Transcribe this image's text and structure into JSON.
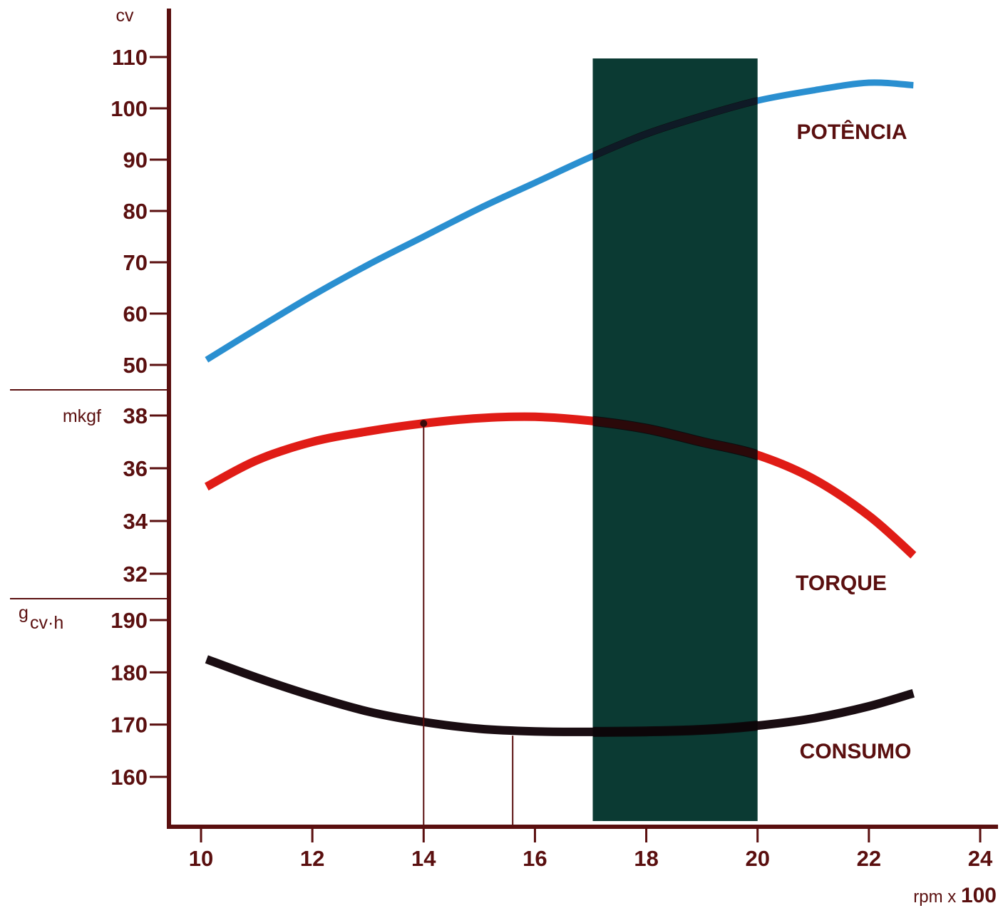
{
  "chart_data": {
    "type": "line",
    "x": {
      "label_prefix": "rpm x",
      "label_suffix": "100",
      "ticks": [
        10,
        12,
        14,
        16,
        18,
        20,
        22,
        24
      ],
      "range": [
        9.3,
        24.2
      ]
    },
    "panels": [
      {
        "id": "potencia",
        "unit": "cv",
        "ticks": [
          50,
          60,
          70,
          80,
          90,
          100,
          110
        ],
        "range": [
          45,
          113
        ]
      },
      {
        "id": "torque",
        "unit": "mkgf",
        "ticks": [
          32,
          34,
          36,
          38
        ],
        "range": [
          31.2,
          39
        ]
      },
      {
        "id": "consumo",
        "unit_main": "g",
        "unit_sub": "cv·h",
        "ticks": [
          160,
          170,
          180,
          190
        ],
        "range": [
          151,
          194
        ]
      }
    ],
    "series": [
      {
        "name": "POTÊNCIA",
        "panel": 0,
        "color": "#2a8fd0",
        "x": [
          10.1,
          11,
          12,
          13,
          14,
          15,
          16,
          17,
          18,
          19,
          20,
          21,
          22,
          22.8
        ],
        "y": [
          51,
          57,
          63.5,
          69.5,
          75,
          80.5,
          85.5,
          90.5,
          95,
          98.5,
          101.5,
          103.5,
          105,
          104.5
        ]
      },
      {
        "name": "TORQUE",
        "panel": 1,
        "color": "#e01c16",
        "x": [
          10.1,
          11,
          12,
          13,
          14,
          15,
          16,
          17,
          18,
          19,
          20,
          21,
          22,
          22.8
        ],
        "y": [
          35.3,
          36.3,
          37,
          37.4,
          37.7,
          37.9,
          37.95,
          37.8,
          37.5,
          37.0,
          36.5,
          35.6,
          34.2,
          32.7
        ]
      },
      {
        "name": "CONSUMO",
        "panel": 2,
        "color": "#1a0d12",
        "x": [
          10.1,
          11,
          12,
          13,
          14,
          15,
          16,
          17,
          18,
          19,
          20,
          21,
          22,
          22.8
        ],
        "y": [
          182.5,
          179,
          175.5,
          172.5,
          170.5,
          169.2,
          168.7,
          168.6,
          168.7,
          169.0,
          169.8,
          171.2,
          173.5,
          176
        ]
      }
    ],
    "band": {
      "x_from": 17,
      "x_to": 20,
      "color": "#0b3a33"
    },
    "markers": [
      {
        "x": 14,
        "y_torque": 37.7
      },
      {
        "x": 15.6,
        "y_consumo": 168.7
      }
    ],
    "axis_color": "#5a0f0f"
  }
}
